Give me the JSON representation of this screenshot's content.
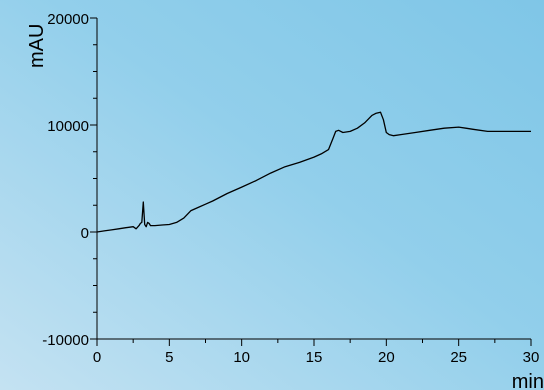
{
  "chart_data": {
    "type": "line",
    "title": "",
    "xlabel": "min",
    "ylabel": "mAU",
    "xlim": [
      0,
      30
    ],
    "ylim": [
      -10000,
      20000
    ],
    "x_ticks": [
      0,
      5,
      10,
      15,
      20,
      25,
      30
    ],
    "y_ticks": [
      -10000,
      0,
      10000,
      20000
    ],
    "x_tick_labels": [
      "0",
      "5",
      "10",
      "15",
      "20",
      "25",
      "30"
    ],
    "y_tick_labels": [
      "-10000",
      "0",
      "10000",
      "20000"
    ],
    "grid": false,
    "legend": "none",
    "series": [
      {
        "x": [
          0,
          0.5,
          1,
          1.5,
          2,
          2.5,
          2.7,
          2.9,
          3.0,
          3.1,
          3.2,
          3.3,
          3.4,
          3.5,
          3.6,
          3.7,
          3.8,
          4.0,
          4.5,
          5,
          5.5,
          6,
          6.5,
          7,
          7.5,
          8,
          9,
          10,
          11,
          12,
          13,
          14,
          15,
          15.5,
          16,
          16.3,
          16.5,
          16.7,
          17,
          17.5,
          18,
          18.5,
          19,
          19.3,
          19.6,
          19.8,
          20.0,
          20.2,
          20.5,
          21,
          22,
          23,
          24,
          25,
          25.5,
          26,
          27,
          28,
          29,
          30
        ],
        "y": [
          0,
          100,
          200,
          300,
          400,
          500,
          300,
          600,
          800,
          900,
          2800,
          700,
          500,
          900,
          800,
          600,
          600,
          600,
          650,
          700,
          900,
          1300,
          2000,
          2300,
          2600,
          2900,
          3600,
          4200,
          4800,
          5500,
          6100,
          6500,
          7000,
          7300,
          7700,
          8700,
          9400,
          9500,
          9300,
          9400,
          9700,
          10200,
          10900,
          11100,
          11200,
          10500,
          9300,
          9100,
          9000,
          9100,
          9300,
          9500,
          9700,
          9800,
          9700,
          9600,
          9400,
          9400,
          9400,
          9400
        ],
        "color": "#000000"
      }
    ]
  },
  "colors": {
    "background_light": "#c4e2f2",
    "background_dark": "#7fc6e7",
    "axis": "#000000",
    "line": "#000000"
  }
}
